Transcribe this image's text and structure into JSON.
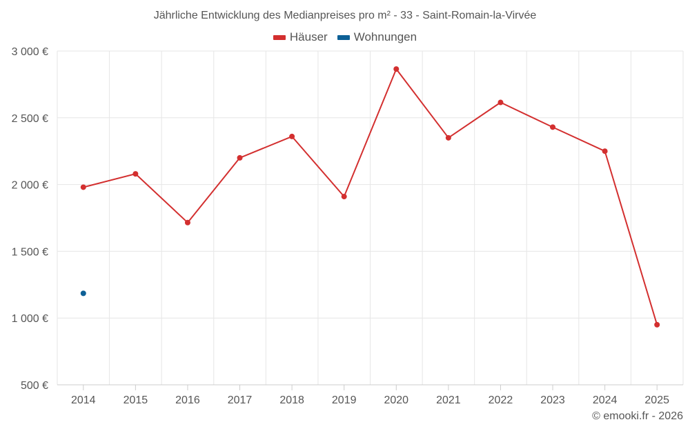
{
  "chart_data": {
    "type": "line",
    "title": "Jährliche Entwicklung des Medianpreises pro m² - 33 - Saint-Romain-la-Virvée",
    "categories": [
      "2014",
      "2015",
      "2016",
      "2017",
      "2018",
      "2019",
      "2020",
      "2021",
      "2022",
      "2023",
      "2024",
      "2025"
    ],
    "ylim": [
      500,
      3000
    ],
    "yticks": [
      500,
      1000,
      1500,
      2000,
      2500,
      3000
    ],
    "ytick_labels": [
      "500 €",
      "1 000 €",
      "1 500 €",
      "2 000 €",
      "2 500 €",
      "3 000 €"
    ],
    "grid": true,
    "legend_position": "top-center",
    "series": [
      {
        "name": "Häuser",
        "color": "#d32f2f",
        "values": [
          1980,
          2080,
          1715,
          2200,
          2360,
          1910,
          2865,
          2350,
          2615,
          2430,
          2250,
          950
        ]
      },
      {
        "name": "Wohnungen",
        "color": "#0d6096",
        "values": [
          1185,
          null,
          null,
          null,
          null,
          null,
          null,
          null,
          null,
          null,
          null,
          null
        ]
      }
    ]
  },
  "footer": {
    "copyright": "© emooki.fr - 2026"
  }
}
